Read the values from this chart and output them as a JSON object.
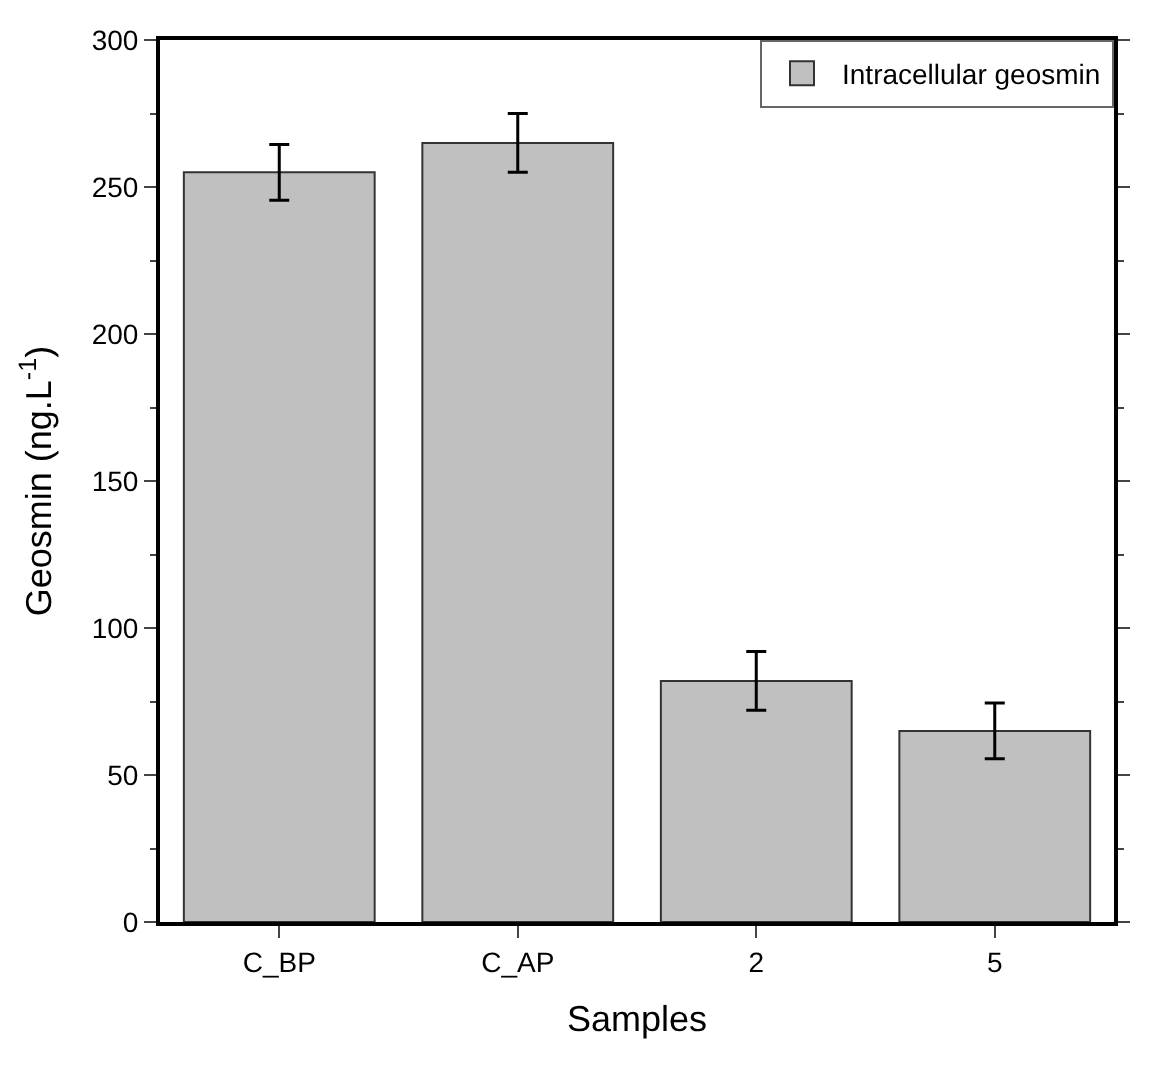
{
  "chart_data": {
    "type": "bar",
    "xlabel": "Samples",
    "ylabel": "Geosmin (ng.L$^{-1}$)",
    "categories": [
      "C_BP",
      "C_AP",
      "2",
      "5"
    ],
    "series": [
      {
        "name": "Intracellular geosmin",
        "color": "#c0c0c0",
        "values": [
          255,
          265,
          82,
          65
        ],
        "errors": [
          9.5,
          10,
          10,
          9.5
        ]
      }
    ],
    "ylim": [
      0,
      300
    ],
    "yticks": [
      0,
      50,
      100,
      150,
      200,
      250,
      300
    ],
    "legend": "top right"
  }
}
